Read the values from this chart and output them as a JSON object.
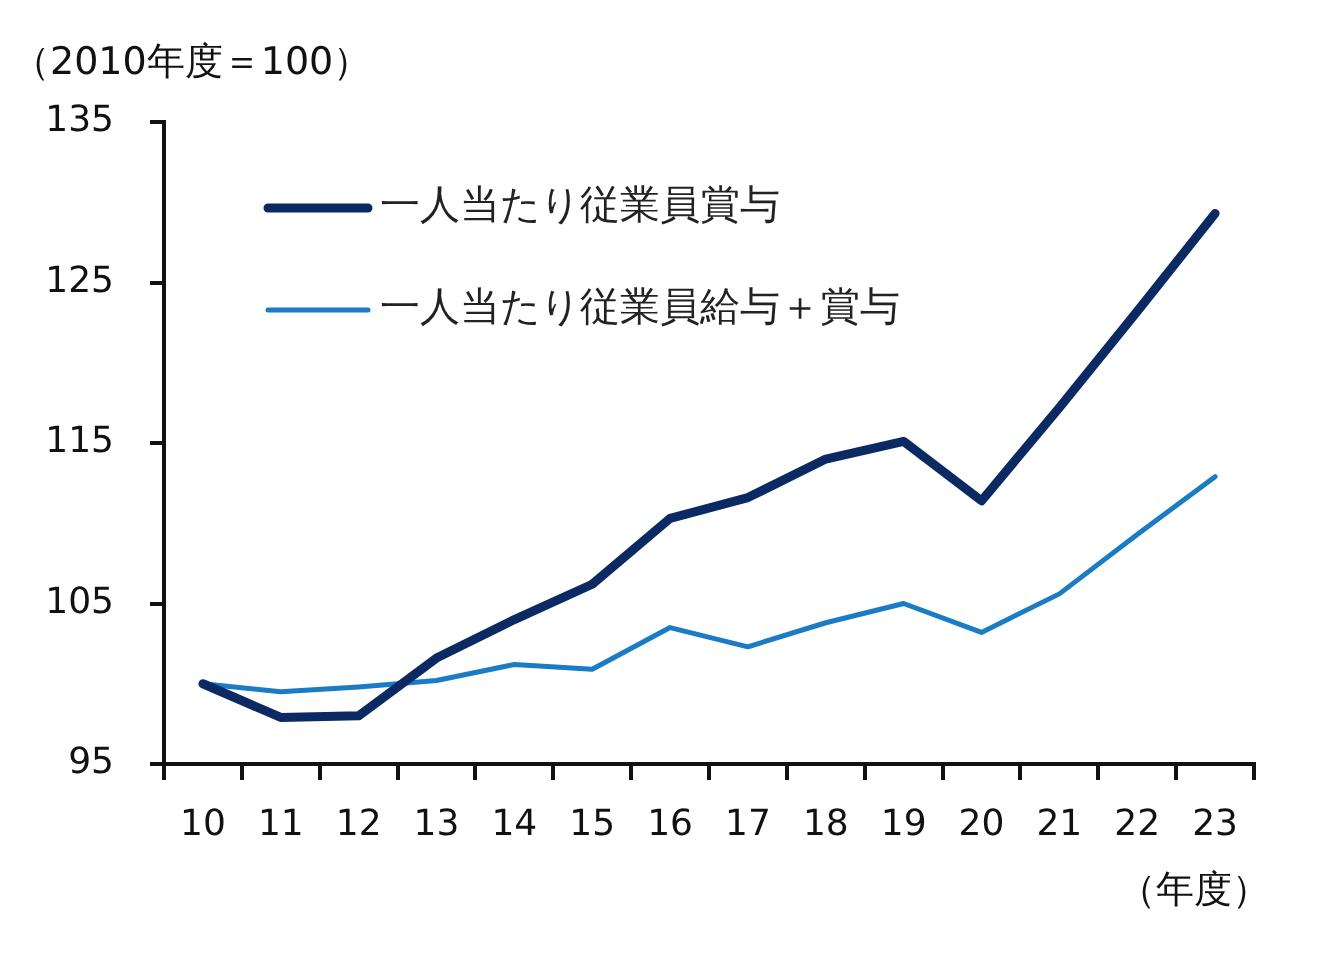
{
  "chart_data": {
    "type": "line",
    "ylabel": "（2010年度＝100）",
    "xlabel": "（年度）",
    "categories": [
      "10",
      "11",
      "12",
      "13",
      "14",
      "15",
      "16",
      "17",
      "18",
      "19",
      "20",
      "21",
      "22",
      "23"
    ],
    "series": [
      {
        "name": "一人当たり従業員賞与",
        "color": "#0b2a63",
        "values": [
          100.0,
          97.9,
          98.0,
          101.6,
          104.0,
          106.2,
          110.3,
          111.6,
          114.0,
          115.1,
          111.4,
          117.2,
          123.2,
          129.3
        ]
      },
      {
        "name": "一人当たり従業員給与＋賞与",
        "color": "#1a7cc4",
        "values": [
          100.0,
          99.5,
          99.8,
          100.2,
          101.2,
          100.9,
          103.5,
          102.3,
          103.8,
          105.0,
          103.2,
          105.6,
          109.3,
          112.9
        ]
      }
    ],
    "ylim": [
      95,
      135
    ],
    "yticks": [
      95,
      105,
      115,
      125,
      135
    ],
    "legend": "top left",
    "marker": "none",
    "line_style": "solid"
  }
}
